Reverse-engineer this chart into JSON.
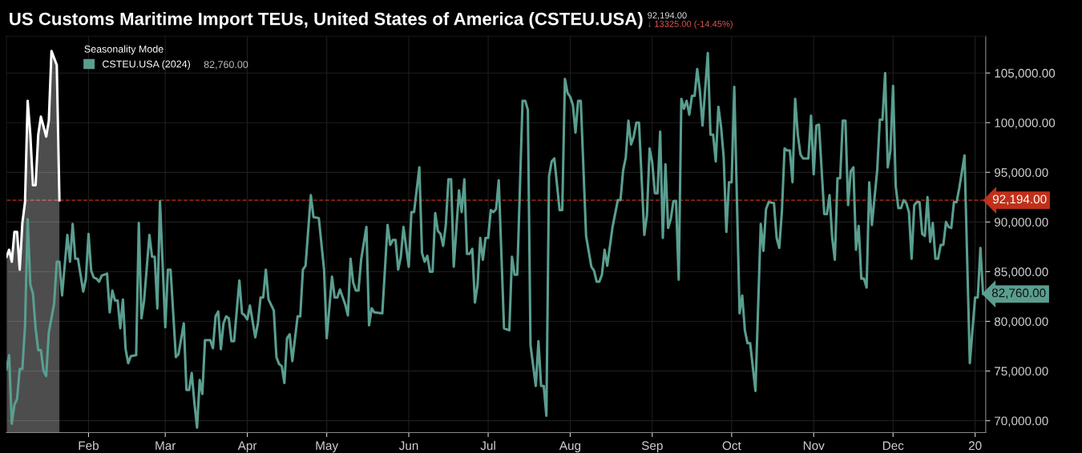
{
  "chart_data": {
    "type": "line",
    "title": "US Customs Maritime Import TEUs, United States of America (CSTEU.USA)",
    "legend_title": "Seasonality Mode",
    "series": [
      {
        "name": "CSTEU.USA (2024)",
        "color": "#5a9e90",
        "type": "line",
        "x": [
          "2024-01-01",
          "2024-01-02",
          "2024-01-03",
          "2024-01-04",
          "2024-01-05",
          "2024-01-06",
          "2024-01-07",
          "2024-01-08",
          "2024-01-09",
          "2024-01-10",
          "2024-01-11",
          "2024-01-12",
          "2024-01-13",
          "2024-01-14",
          "2024-01-15",
          "2024-01-16",
          "2024-01-17",
          "2024-01-19",
          "2024-01-20",
          "2024-01-21",
          "2024-01-22",
          "2024-01-24",
          "2024-01-25",
          "2024-01-26",
          "2024-01-27",
          "2024-01-28",
          "2024-01-30",
          "2024-01-31",
          "2024-02-01",
          "2024-02-02",
          "2024-02-03",
          "2024-02-04",
          "2024-02-05",
          "2024-02-06",
          "2024-02-08",
          "2024-02-09",
          "2024-02-10",
          "2024-02-11",
          "2024-02-12",
          "2024-02-13",
          "2024-02-14",
          "2024-02-15",
          "2024-02-16",
          "2024-02-17",
          "2024-02-19",
          "2024-02-20",
          "2024-02-21",
          "2024-02-22",
          "2024-02-24",
          "2024-02-25",
          "2024-02-26",
          "2024-02-27",
          "2024-02-28",
          "2024-03-01",
          "2024-03-02",
          "2024-03-03",
          "2024-03-05",
          "2024-03-06",
          "2024-03-08",
          "2024-03-09",
          "2024-03-10",
          "2024-03-11",
          "2024-03-12",
          "2024-03-13",
          "2024-03-14",
          "2024-03-15",
          "2024-03-16",
          "2024-03-18",
          "2024-03-19",
          "2024-03-20",
          "2024-03-21",
          "2024-03-22",
          "2024-03-23",
          "2024-03-24",
          "2024-03-25",
          "2024-03-26",
          "2024-03-27",
          "2024-03-29",
          "2024-03-30",
          "2024-03-31",
          "2024-04-01",
          "2024-04-02",
          "2024-04-04",
          "2024-04-05",
          "2024-04-06",
          "2024-04-07",
          "2024-04-08",
          "2024-04-09",
          "2024-04-11",
          "2024-04-12",
          "2024-04-13",
          "2024-04-14",
          "2024-04-15",
          "2024-04-16",
          "2024-04-17",
          "2024-04-18",
          "2024-04-20",
          "2024-04-21",
          "2024-04-22",
          "2024-04-23",
          "2024-04-25",
          "2024-04-26",
          "2024-04-28",
          "2024-04-30",
          "2024-05-01",
          "2024-05-03",
          "2024-05-04",
          "2024-05-05",
          "2024-05-06",
          "2024-05-08",
          "2024-05-09",
          "2024-05-10",
          "2024-05-11",
          "2024-05-12",
          "2024-05-13",
          "2024-05-14",
          "2024-05-16",
          "2024-05-17",
          "2024-05-18",
          "2024-05-19",
          "2024-05-22",
          "2024-05-24",
          "2024-05-25",
          "2024-05-26",
          "2024-05-27",
          "2024-05-28",
          "2024-05-29",
          "2024-05-30",
          "2024-06-01",
          "2024-06-02",
          "2024-06-03",
          "2024-06-05",
          "2024-06-06",
          "2024-06-07",
          "2024-06-08",
          "2024-06-09",
          "2024-06-10",
          "2024-06-11",
          "2024-06-12",
          "2024-06-13",
          "2024-06-14",
          "2024-06-15",
          "2024-06-16",
          "2024-06-17",
          "2024-06-18",
          "2024-06-20",
          "2024-06-21",
          "2024-06-22",
          "2024-06-23",
          "2024-06-24",
          "2024-06-25",
          "2024-06-26",
          "2024-06-27",
          "2024-06-28",
          "2024-06-29",
          "2024-06-30",
          "2024-07-01",
          "2024-07-02",
          "2024-07-03",
          "2024-07-04",
          "2024-07-05",
          "2024-07-07",
          "2024-07-09",
          "2024-07-10",
          "2024-07-11",
          "2024-07-12",
          "2024-07-14",
          "2024-07-15",
          "2024-07-16",
          "2024-07-17",
          "2024-07-19",
          "2024-07-20",
          "2024-07-21",
          "2024-07-22",
          "2024-07-23",
          "2024-07-24",
          "2024-07-25",
          "2024-07-26",
          "2024-07-28",
          "2024-07-29",
          "2024-07-30",
          "2024-07-31",
          "2024-08-01",
          "2024-08-02",
          "2024-08-03",
          "2024-08-04",
          "2024-08-05",
          "2024-08-07",
          "2024-08-09",
          "2024-08-10",
          "2024-08-11",
          "2024-08-12",
          "2024-08-13",
          "2024-08-14",
          "2024-08-15",
          "2024-08-17",
          "2024-08-19",
          "2024-08-20",
          "2024-08-21",
          "2024-08-22",
          "2024-08-23",
          "2024-08-24",
          "2024-08-25",
          "2024-08-26",
          "2024-08-27",
          "2024-08-29",
          "2024-08-30",
          "2024-08-31",
          "2024-09-01",
          "2024-09-02",
          "2024-09-03",
          "2024-09-04",
          "2024-09-05",
          "2024-09-06",
          "2024-09-07",
          "2024-09-08",
          "2024-09-09",
          "2024-09-10",
          "2024-09-11",
          "2024-09-12",
          "2024-09-13",
          "2024-09-14",
          "2024-09-15",
          "2024-09-16",
          "2024-09-17",
          "2024-09-18",
          "2024-09-19",
          "2024-09-20",
          "2024-09-22",
          "2024-09-23",
          "2024-09-24",
          "2024-09-25",
          "2024-09-26",
          "2024-09-27",
          "2024-09-28",
          "2024-09-29",
          "2024-09-30",
          "2024-10-01",
          "2024-10-02",
          "2024-10-04",
          "2024-10-05",
          "2024-10-06",
          "2024-10-07",
          "2024-10-08",
          "2024-10-10",
          "2024-10-12",
          "2024-10-13",
          "2024-10-14",
          "2024-10-15",
          "2024-10-17",
          "2024-10-18",
          "2024-10-19",
          "2024-10-20",
          "2024-10-21",
          "2024-10-22",
          "2024-10-23",
          "2024-10-24",
          "2024-10-25",
          "2024-10-26",
          "2024-10-27",
          "2024-10-28",
          "2024-10-30",
          "2024-10-31",
          "2024-11-01",
          "2024-11-02",
          "2024-11-03",
          "2024-11-05",
          "2024-11-06",
          "2024-11-07",
          "2024-11-08",
          "2024-11-09",
          "2024-11-10",
          "2024-11-11",
          "2024-11-12",
          "2024-11-13",
          "2024-11-14",
          "2024-11-15",
          "2024-11-16",
          "2024-11-17",
          "2024-11-18",
          "2024-11-19",
          "2024-11-20",
          "2024-11-21",
          "2024-11-22",
          "2024-11-23",
          "2024-11-25",
          "2024-11-26",
          "2024-11-27",
          "2024-11-28",
          "2024-11-29",
          "2024-11-30",
          "2024-12-01",
          "2024-12-02",
          "2024-12-03",
          "2024-12-04",
          "2024-12-05",
          "2024-12-06",
          "2024-12-07",
          "2024-12-08",
          "2024-12-09",
          "2024-12-10",
          "2024-12-11",
          "2024-12-12",
          "2024-12-13",
          "2024-12-14",
          "2024-12-15",
          "2024-12-16",
          "2024-12-17",
          "2024-12-18",
          "2024-12-19",
          "2024-12-20",
          "2024-12-21",
          "2024-12-22",
          "2024-12-23",
          "2024-12-24",
          "2024-12-25",
          "2024-12-26",
          "2024-12-28",
          "2024-12-30",
          "2025-01-01",
          "2025-01-02",
          "2025-01-03",
          "2025-01-04"
        ],
        "values": [
          75200,
          76600,
          69700,
          71600,
          72200,
          75200,
          75200,
          79500,
          90300,
          83700,
          82800,
          79300,
          77100,
          77100,
          75000,
          74500,
          78900,
          81800,
          86000,
          86000,
          82600,
          88700,
          86000,
          89800,
          86300,
          86300,
          83000,
          84300,
          88800,
          85100,
          84400,
          84300,
          84000,
          84600,
          84800,
          80900,
          83100,
          82100,
          82100,
          79300,
          82200,
          77200,
          75800,
          76500,
          76600,
          89900,
          80300,
          82100,
          88700,
          86500,
          86500,
          81300,
          92100,
          79400,
          85200,
          85200,
          76400,
          76700,
          79800,
          73100,
          73100,
          74800,
          71800,
          69300,
          74100,
          72700,
          78100,
          78100,
          77300,
          80500,
          81000,
          77200,
          79800,
          80500,
          80300,
          78000,
          78000,
          84100,
          80800,
          80600,
          80200,
          81600,
          78400,
          79800,
          82400,
          82400,
          85200,
          82200,
          81100,
          76400,
          75700,
          75500,
          73800,
          78300,
          78700,
          76000,
          80500,
          80500,
          85200,
          85600,
          92700,
          90500,
          90400,
          85200,
          78300,
          84500,
          82400,
          82400,
          83200,
          81700,
          80600,
          86300,
          83900,
          83100,
          83100,
          86200,
          89500,
          79600,
          81300,
          80900,
          80800,
          89700,
          87700,
          88200,
          88200,
          85200,
          86500,
          89500,
          85500,
          91000,
          91000,
          95500,
          86900,
          86000,
          86600,
          85000,
          85000,
          90900,
          89100,
          88800,
          87600,
          89700,
          94300,
          94300,
          85500,
          93200,
          91000,
          94300,
          86800,
          86800,
          87300,
          81900,
          83700,
          88400,
          86200,
          88400,
          88400,
          91200,
          91000,
          91300,
          94200,
          79300,
          79100,
          86500,
          84700,
          84700,
          102200,
          102200,
          101300,
          77600,
          73500,
          78000,
          73500,
          73500,
          70500,
          94600,
          96100,
          96400,
          91200,
          91200,
          104400,
          103000,
          102600,
          101800,
          99000,
          102200,
          102200,
          88600,
          85500,
          85100,
          84000,
          84000,
          84700,
          87200,
          85600,
          89500,
          92200,
          92200,
          95200,
          96500,
          100200,
          97800,
          98600,
          100000,
          100000,
          88700,
          90700,
          97400,
          96000,
          92900,
          92900,
          99100,
          88400,
          95800,
          89400,
          90300,
          92100,
          92100,
          84200,
          102400,
          101400,
          102200,
          100800,
          102700,
          102700,
          105400,
          103200,
          99700,
          107000,
          98800,
          98800,
          96100,
          101600,
          99600,
          96500,
          89000,
          94000,
          94000,
          103600,
          80800,
          82600,
          79100,
          77800,
          77800,
          73000,
          89800,
          87100,
          91300,
          92000,
          91900,
          88400,
          87400,
          91100,
          97400,
          97200,
          97200,
          94000,
          102400,
          98800,
          96800,
          96400,
          96400,
          100700,
          94800,
          99700,
          99800,
          90800,
          90800,
          92700,
          88400,
          86200,
          94400,
          94400,
          100200,
          100200,
          91700,
          95100,
          95500,
          87200,
          89600,
          84300,
          84300,
          83400,
          94000,
          89700,
          95200,
          100300,
          100300,
          105000,
          95500,
          97200,
          103700,
          93600,
          91400,
          91400,
          92200,
          91900,
          91000,
          86300,
          91700,
          92000,
          92000,
          88800,
          88600,
          92500,
          88000,
          89900,
          86300,
          86300,
          87700,
          87700,
          90000,
          89500,
          89400,
          92000,
          92000,
          93400,
          96700,
          75800,
          82400,
          82400,
          87400,
          82760
        ]
      },
      {
        "color": "#ffffff",
        "type": "area",
        "x": [
          "2024-01-01",
          "2024-01-02",
          "2024-01-03",
          "2024-01-04",
          "2024-01-05",
          "2024-01-06",
          "2024-01-07",
          "2024-01-08",
          "2024-01-09",
          "2024-01-10",
          "2024-01-11",
          "2024-01-12",
          "2024-01-13",
          "2024-01-14",
          "2024-01-16",
          "2024-01-17",
          "2024-01-18",
          "2024-01-20",
          "2024-01-21"
        ],
        "values": [
          86500,
          87200,
          86000,
          89000,
          89000,
          85200,
          89900,
          92000,
          102200,
          98800,
          93700,
          93700,
          98800,
          100600,
          98600,
          100200,
          107200,
          105800,
          92194
        ]
      }
    ],
    "xlim": [
      "2024-01-01",
      "2025-01-05"
    ],
    "xticks": [
      {
        "value": "2024-02-01",
        "label": "Feb"
      },
      {
        "value": "2024-03-01",
        "label": "Mar"
      },
      {
        "value": "2024-04-01",
        "label": "Apr"
      },
      {
        "value": "2024-05-01",
        "label": "May"
      },
      {
        "value": "2024-06-01",
        "label": "Jun"
      },
      {
        "value": "2024-07-01",
        "label": "Jul"
      },
      {
        "value": "2024-08-01",
        "label": "Aug"
      },
      {
        "value": "2024-09-01",
        "label": "Sep"
      },
      {
        "value": "2024-10-01",
        "label": "Oct"
      },
      {
        "value": "2024-11-01",
        "label": "Nov"
      },
      {
        "value": "2024-12-01",
        "label": "Dec"
      },
      {
        "value": "2025-01-01",
        "label": "20"
      }
    ],
    "ylim": [
      68800,
      108700
    ],
    "yticks": [
      {
        "value": 70000,
        "label": "70,000.00"
      },
      {
        "value": 75000,
        "label": "75,000.00"
      },
      {
        "value": 80000,
        "label": "80,000.00"
      },
      {
        "value": 85000,
        "label": "85,000.00"
      },
      {
        "value": 90000,
        "label": "90,000.00"
      },
      {
        "value": 95000,
        "label": "95,000.00"
      },
      {
        "value": 100000,
        "label": "100,000.00"
      },
      {
        "value": 105000,
        "label": "105,000.00"
      }
    ],
    "ref_lines": [
      {
        "axis": "y",
        "value": 92194,
        "label": "92,194.00",
        "color": "#c0301a",
        "line_style": "dashed"
      }
    ],
    "annotations": [
      "82,760.00",
      "92,194.00",
      "↓ 13325.00 (-14.45%)",
      {
        "text": "82,760.00",
        "x": "2025-01-04",
        "y": 82760
      }
    ],
    "grid": true,
    "legend": "top left",
    "marker": "none",
    "line_style": "solid"
  }
}
